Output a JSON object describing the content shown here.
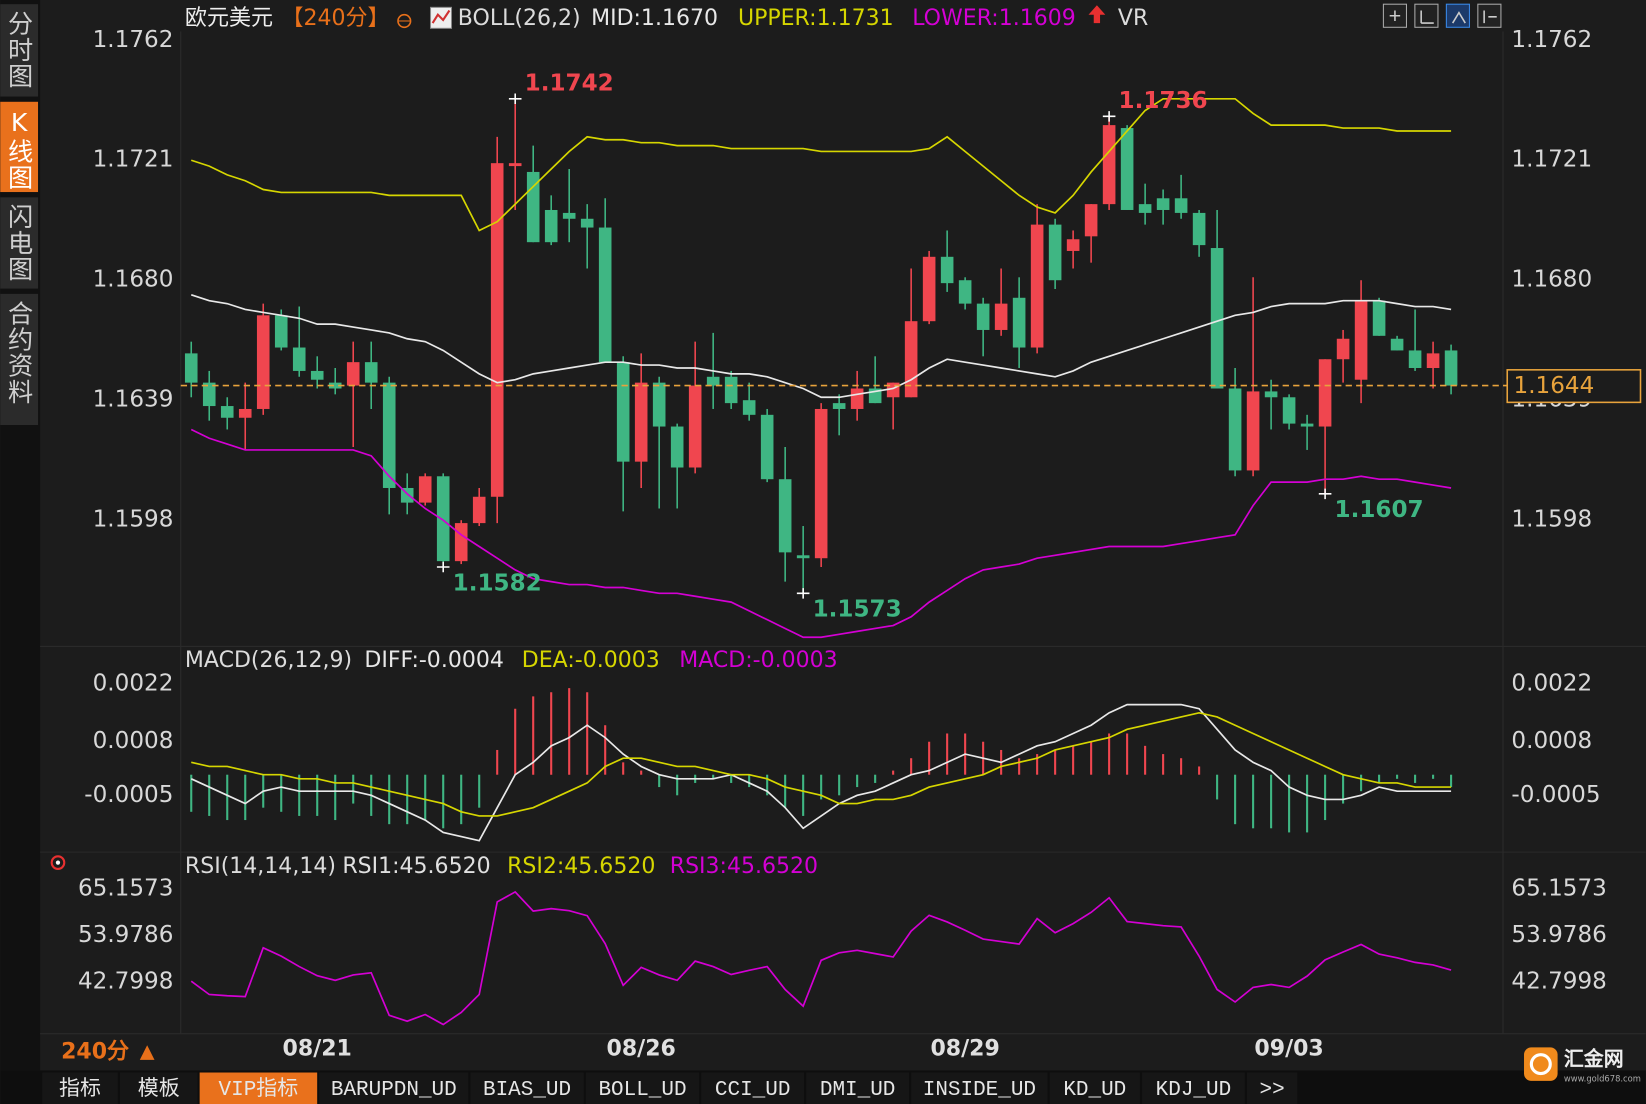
{
  "chart_data": [
    {
      "type": "candlestick",
      "title": "欧元美元",
      "period": "【240分】",
      "indicator": "BOLL(26,2)",
      "secondary_indicator": "VR",
      "categories": [
        null,
        null,
        null,
        null,
        null,
        null,
        null,
        "08/21",
        null,
        null,
        null,
        null,
        null,
        null,
        null,
        null,
        null,
        null,
        null,
        null,
        null,
        null,
        null,
        null,
        null,
        "08/26",
        null,
        null,
        null,
        null,
        null,
        null,
        null,
        null,
        null,
        null,
        null,
        null,
        null,
        null,
        null,
        null,
        null,
        "08/29",
        null,
        null,
        null,
        null,
        null,
        null,
        null,
        null,
        null,
        null,
        null,
        null,
        null,
        null,
        null,
        null,
        null,
        "09/03",
        null,
        null,
        null,
        null,
        null,
        null,
        null,
        null,
        null
      ],
      "open": [
        1.1655,
        1.1645,
        1.1637,
        1.1633,
        1.1636,
        1.1668,
        1.1657,
        1.1649,
        1.1645,
        1.1644,
        1.1652,
        1.1645,
        1.1609,
        1.1604,
        1.1613,
        1.1584,
        1.1597,
        1.1606,
        1.1719,
        1.1717,
        1.1704,
        1.1703,
        1.1701,
        1.1698,
        1.1652,
        1.1618,
        1.1645,
        1.163,
        1.1616,
        1.1647,
        1.1647,
        1.1639,
        1.1634,
        1.1612,
        1.1586,
        1.1585,
        1.1638,
        1.1636,
        1.1643,
        1.164,
        1.164,
        1.1666,
        1.1688,
        1.168,
        1.1672,
        1.1663,
        1.1674,
        1.1657,
        1.1699,
        1.169,
        1.1695,
        1.1706,
        1.1732,
        1.1706,
        1.1708,
        1.1708,
        1.1703,
        1.1691,
        1.1643,
        1.1615,
        1.1642,
        1.164,
        1.1631,
        1.163,
        1.1653,
        1.1646,
        1.1673,
        1.166,
        1.1656,
        1.165,
        1.1656
      ],
      "high": [
        1.1659,
        1.1649,
        1.164,
        1.1645,
        1.1672,
        1.167,
        1.1671,
        1.1654,
        1.165,
        1.1659,
        1.1659,
        1.1647,
        1.1614,
        1.1614,
        1.1614,
        1.1598,
        1.1609,
        1.1729,
        1.1742,
        1.1726,
        1.1709,
        1.1718,
        1.1706,
        1.1708,
        1.1654,
        1.1655,
        1.1647,
        1.1631,
        1.1659,
        1.1662,
        1.1649,
        1.1645,
        1.1636,
        1.1623,
        1.1596,
        1.1638,
        1.1641,
        1.1649,
        1.1654,
        1.1645,
        1.1684,
        1.169,
        1.1697,
        1.1681,
        1.1674,
        1.1684,
        1.1681,
        1.1706,
        1.1701,
        1.1697,
        1.1706,
        1.1736,
        1.1733,
        1.1713,
        1.1711,
        1.1716,
        1.1704,
        1.1704,
        1.165,
        1.1681,
        1.1646,
        1.1641,
        1.1634,
        1.1653,
        1.1663,
        1.168,
        1.1674,
        1.1661,
        1.167,
        1.1659,
        1.1658
      ],
      "low": [
        1.164,
        1.1632,
        1.1629,
        1.1622,
        1.1634,
        1.1656,
        1.1647,
        1.1643,
        1.1641,
        1.1623,
        1.1636,
        1.16,
        1.16,
        1.1603,
        1.1582,
        1.1583,
        1.1596,
        1.1597,
        1.1704,
        1.1693,
        1.1692,
        1.1693,
        1.1684,
        1.1652,
        1.1601,
        1.1609,
        1.1602,
        1.1602,
        1.1614,
        1.1636,
        1.1636,
        1.1632,
        1.1611,
        1.1577,
        1.1573,
        1.1582,
        1.1627,
        1.1632,
        1.1638,
        1.1629,
        1.164,
        1.1665,
        1.1676,
        1.167,
        1.1654,
        1.1661,
        1.165,
        1.1655,
        1.1677,
        1.1684,
        1.1686,
        1.1704,
        1.1704,
        1.1699,
        1.1699,
        1.1701,
        1.1688,
        1.1643,
        1.1613,
        1.1613,
        1.1629,
        1.1629,
        1.1622,
        1.1607,
        1.1645,
        1.1638,
        1.1661,
        1.1656,
        1.1649,
        1.1643,
        1.1641
      ],
      "close": [
        1.1645,
        1.1637,
        1.1633,
        1.1636,
        1.1668,
        1.1657,
        1.1649,
        1.1646,
        1.1643,
        1.1652,
        1.1645,
        1.1609,
        1.1604,
        1.1613,
        1.1584,
        1.1597,
        1.1606,
        1.172,
        1.172,
        1.1693,
        1.1693,
        1.1701,
        1.1698,
        1.1652,
        1.1618,
        1.1645,
        1.163,
        1.1616,
        1.1644,
        1.1644,
        1.1638,
        1.1634,
        1.1612,
        1.1587,
        1.1585,
        1.1636,
        1.1636,
        1.1643,
        1.1638,
        1.1645,
        1.1666,
        1.1688,
        1.1679,
        1.1672,
        1.1663,
        1.1672,
        1.1657,
        1.1699,
        1.168,
        1.1694,
        1.1706,
        1.1733,
        1.1704,
        1.1703,
        1.1704,
        1.1703,
        1.1692,
        1.1643,
        1.1615,
        1.1642,
        1.164,
        1.1631,
        1.163,
        1.1653,
        1.166,
        1.1673,
        1.1661,
        1.1656,
        1.165,
        1.1655,
        1.1644
      ],
      "up_color": "#f0464f",
      "down_color": "#3fb683",
      "last_price_color": "#e8a33c",
      "series": [
        {
          "name": "MID:1.1670",
          "color": "#e8e8e8",
          "values": [
            1.1675,
            1.1673,
            1.1672,
            1.167,
            1.1669,
            1.1668,
            1.1667,
            1.1665,
            1.1665,
            1.1664,
            1.1663,
            1.1662,
            1.166,
            1.1659,
            1.1656,
            1.1652,
            1.1648,
            1.1645,
            1.1646,
            1.1648,
            1.1649,
            1.165,
            1.1651,
            1.1652,
            1.1652,
            1.1651,
            1.1651,
            1.165,
            1.165,
            1.1649,
            1.1648,
            1.1648,
            1.1647,
            1.1645,
            1.1643,
            1.164,
            1.164,
            1.1641,
            1.1642,
            1.1643,
            1.1646,
            1.165,
            1.1653,
            1.1652,
            1.1651,
            1.165,
            1.1649,
            1.1648,
            1.1647,
            1.1649,
            1.1652,
            1.1654,
            1.1656,
            1.1658,
            1.166,
            1.1662,
            1.1664,
            1.1666,
            1.1668,
            1.1669,
            1.1671,
            1.1672,
            1.1672,
            1.1672,
            1.1673,
            1.1673,
            1.1673,
            1.1672,
            1.1671,
            1.1671,
            1.167
          ]
        },
        {
          "name": "UPPER:1.1731",
          "color": "#d6d600",
          "values": [
            1.1721,
            1.1719,
            1.1716,
            1.1714,
            1.1711,
            1.171,
            1.171,
            1.171,
            1.171,
            1.171,
            1.171,
            1.1709,
            1.1709,
            1.1709,
            1.1709,
            1.1709,
            1.1697,
            1.17,
            1.1706,
            1.1712,
            1.1718,
            1.1724,
            1.1729,
            1.1728,
            1.1728,
            1.1727,
            1.1727,
            1.1726,
            1.1726,
            1.1726,
            1.1725,
            1.1725,
            1.1725,
            1.1725,
            1.1725,
            1.1724,
            1.1724,
            1.1724,
            1.1724,
            1.1724,
            1.1724,
            1.1725,
            1.1729,
            1.1724,
            1.1719,
            1.1714,
            1.1709,
            1.1705,
            1.1703,
            1.1709,
            1.1717,
            1.1724,
            1.1731,
            1.1738,
            1.1742,
            1.1742,
            1.1742,
            1.1742,
            1.1742,
            1.1737,
            1.1733,
            1.1733,
            1.1733,
            1.1733,
            1.1732,
            1.1732,
            1.1732,
            1.1731,
            1.1731,
            1.1731,
            1.1731
          ]
        },
        {
          "name": "LOWER:1.1609",
          "color": "#d400d4",
          "values": [
            1.1629,
            1.1626,
            1.1624,
            1.1622,
            1.1622,
            1.1622,
            1.1622,
            1.1622,
            1.1622,
            1.1622,
            1.162,
            1.1613,
            1.1607,
            1.1602,
            1.1598,
            1.1593,
            1.1589,
            1.1585,
            1.1581,
            1.1578,
            1.1577,
            1.1576,
            1.1576,
            1.1575,
            1.1575,
            1.1574,
            1.1573,
            1.1573,
            1.1572,
            1.1571,
            1.157,
            1.1567,
            1.1564,
            1.1561,
            1.1558,
            1.1558,
            1.1559,
            1.156,
            1.1561,
            1.1562,
            1.1565,
            1.157,
            1.1574,
            1.1578,
            1.1581,
            1.1582,
            1.1583,
            1.1585,
            1.1586,
            1.1587,
            1.1588,
            1.1589,
            1.1589,
            1.1589,
            1.1589,
            1.159,
            1.1591,
            1.1592,
            1.1593,
            1.1603,
            1.1611,
            1.1611,
            1.1611,
            1.1612,
            1.1612,
            1.1613,
            1.1612,
            1.1612,
            1.1611,
            1.161,
            1.1609
          ]
        }
      ],
      "annotations": [
        1.1742,
        1.1736,
        1.1582,
        1.1573,
        1.1607
      ],
      "ylim": [
        1.1557,
        1.1765
      ],
      "yticks": [
        1.1598,
        1.1639,
        {
          "value": 1.168,
          "label": "1.1680"
        },
        1.1721,
        1.1762
      ]
    },
    {
      "type": "macd",
      "title": "MACD(26,12,9)",
      "up_color": "#f0464f",
      "down_color": "#3fb683",
      "series": [
        {
          "name": "DIFF:-0.0004",
          "color": "#e8e8e8",
          "style": "line",
          "values": [
            -0.0001,
            -0.0003,
            -0.0005,
            -0.0007,
            -0.0004,
            -0.0003,
            -0.0004,
            -0.0004,
            -0.0004,
            -0.0004,
            -0.0005,
            -0.0007,
            -0.0009,
            -0.0011,
            -0.0014,
            -0.0015,
            -0.0016,
            -0.0008,
            0,
            0.0003,
            0.0007,
            0.0009,
            0.0012,
            0.0009,
            0.0005,
            0.0002,
            0,
            -0.0001,
            -0.0001,
            -0.0001,
            0,
            -0.0002,
            -0.0004,
            -0.0008,
            -0.0013,
            -0.001,
            -0.0007,
            -0.0005,
            -0.0004,
            -0.0002,
            0,
            0.0001,
            0.0003,
            0.0005,
            0.0004,
            0.0003,
            0.0005,
            0.0007,
            0.0008,
            0.001,
            0.0012,
            0.0015,
            0.0017,
            0.0017,
            0.0017,
            0.0017,
            0.0016,
            0.0011,
            0.0006,
            0.0003,
            0.0001,
            -0.0003,
            -0.0005,
            -0.0006,
            -0.0006,
            -0.0005,
            -0.0003,
            -0.0004,
            -0.0004,
            -0.0004,
            -0.0004
          ]
        },
        {
          "name": "DEA:-0.0003",
          "color": "#d6d600",
          "style": "line",
          "values": [
            0.0003,
            0.0002,
            0.0002,
            0.0001,
            0,
            0,
            -0.0001,
            -0.0001,
            -0.0002,
            -0.0002,
            -0.0003,
            -0.0004,
            -0.0005,
            -0.0006,
            -0.0007,
            -0.0009,
            -0.001,
            -0.001,
            -0.0009,
            -0.0008,
            -0.0006,
            -0.0004,
            -0.0002,
            0.0002,
            0.0004,
            0.0004,
            0.0003,
            0.0002,
            0.0002,
            0.0001,
            0,
            0,
            -0.0001,
            -0.0003,
            -0.0004,
            -0.0005,
            -0.0007,
            -0.0007,
            -0.0006,
            -0.0006,
            -0.0005,
            -0.0003,
            -0.0002,
            -0.0001,
            0,
            0.0002,
            0.0003,
            0.0004,
            0.0006,
            0.0007,
            0.0008,
            0.0009,
            0.0011,
            0.0012,
            0.0013,
            0.0014,
            0.0015,
            0.0014,
            0.0012,
            0.001,
            0.0008,
            0.0006,
            0.0004,
            0.0002,
            0,
            -0.0001,
            -0.0002,
            -0.0002,
            -0.0003,
            -0.0003,
            -0.0003
          ]
        },
        {
          "name": "MACD:-0.0003",
          "color": "#d400d4",
          "style": "bar",
          "values": [
            -0.0009,
            -0.001,
            -0.0011,
            -0.0011,
            -0.0008,
            -0.0009,
            -0.001,
            -0.001,
            -0.0011,
            -0.0007,
            -0.001,
            -0.0012,
            -0.0012,
            -0.0011,
            -0.0013,
            -0.0012,
            -0.0008,
            0.0006,
            0.0016,
            0.0019,
            0.002,
            0.0021,
            0.002,
            0.0012,
            0.0003,
            0.0001,
            -0.0003,
            -0.0005,
            -0.0002,
            -0.0001,
            -0.0002,
            -0.0003,
            -0.0005,
            -0.0008,
            -0.001,
            -0.0006,
            -0.0005,
            -0.0003,
            -0.0002,
            0.0001,
            0.0004,
            0.0008,
            0.001,
            0.001,
            0.0008,
            0.0006,
            0.0004,
            0.0005,
            0.0006,
            0.0007,
            0.0008,
            0.001,
            0.001,
            0.0007,
            0.0005,
            0.0004,
            0.0002,
            -0.0006,
            -0.0012,
            -0.0013,
            -0.0013,
            -0.0014,
            -0.0014,
            -0.0011,
            -0.0007,
            -0.0004,
            -0.0002,
            -0.0001,
            -0.0002,
            -0.0001,
            -0.0003
          ]
        }
      ],
      "ylim": [
        -0.0017,
        0.0025
      ],
      "yticks": [
        -0.0005,
        0.0008,
        0.0022
      ]
    },
    {
      "type": "rsi",
      "title": "RSI(14,14,14)",
      "color": "#d400d4",
      "legend": [
        {
          "label": "RSI1:45.6520",
          "color": "#e0e0e0"
        },
        {
          "label": "RSI2:45.6520",
          "color": "#d6d600"
        },
        {
          "label": "RSI3:45.6520",
          "color": "#d400d4"
        }
      ],
      "values": [
        43.0,
        39.8,
        39.5,
        39.3,
        51.0,
        49.0,
        46.5,
        44.3,
        43.2,
        44.5,
        45.0,
        34.8,
        33.4,
        35.0,
        32.6,
        35.5,
        39.8,
        62.0,
        64.4,
        59.8,
        60.4,
        59.9,
        58.7,
        52.0,
        42.0,
        46.3,
        44.5,
        43.2,
        47.8,
        46.5,
        44.6,
        45.6,
        46.5,
        41.0,
        37.0,
        48.0,
        49.8,
        50.4,
        49.6,
        48.8,
        55.0,
        58.8,
        57.2,
        55.2,
        53.1,
        52.5,
        51.9,
        58.0,
        54.6,
        56.8,
        59.5,
        63.0,
        57.3,
        56.8,
        56.3,
        56.0,
        49.0,
        41.0,
        38.0,
        41.5,
        42.2,
        41.5,
        44.2,
        48.1,
        50.0,
        51.8,
        49.5,
        48.6,
        47.5,
        46.9,
        45.652
      ],
      "ylim": [
        30.4,
        67.4
      ],
      "yticks": [
        42.7998,
        53.9786,
        65.1573
      ]
    }
  ],
  "sidebar": [
    "分时图",
    "K线图",
    "闪电图",
    "合约资料"
  ],
  "sidebar_active": 1,
  "period_selector": "240分",
  "tabs": [
    "指标",
    "模板",
    "VIP指标",
    "BARUPDN_UD",
    "BIAS_UD",
    "BOLL_UD",
    "CCI_UD",
    "DMI_UD",
    "INSIDE_UD",
    "KD_UD",
    "KDJ_UD",
    ">>"
  ],
  "tabs_active": 2,
  "logo": {
    "name": "汇金网",
    "url": "www.gold678.com"
  }
}
